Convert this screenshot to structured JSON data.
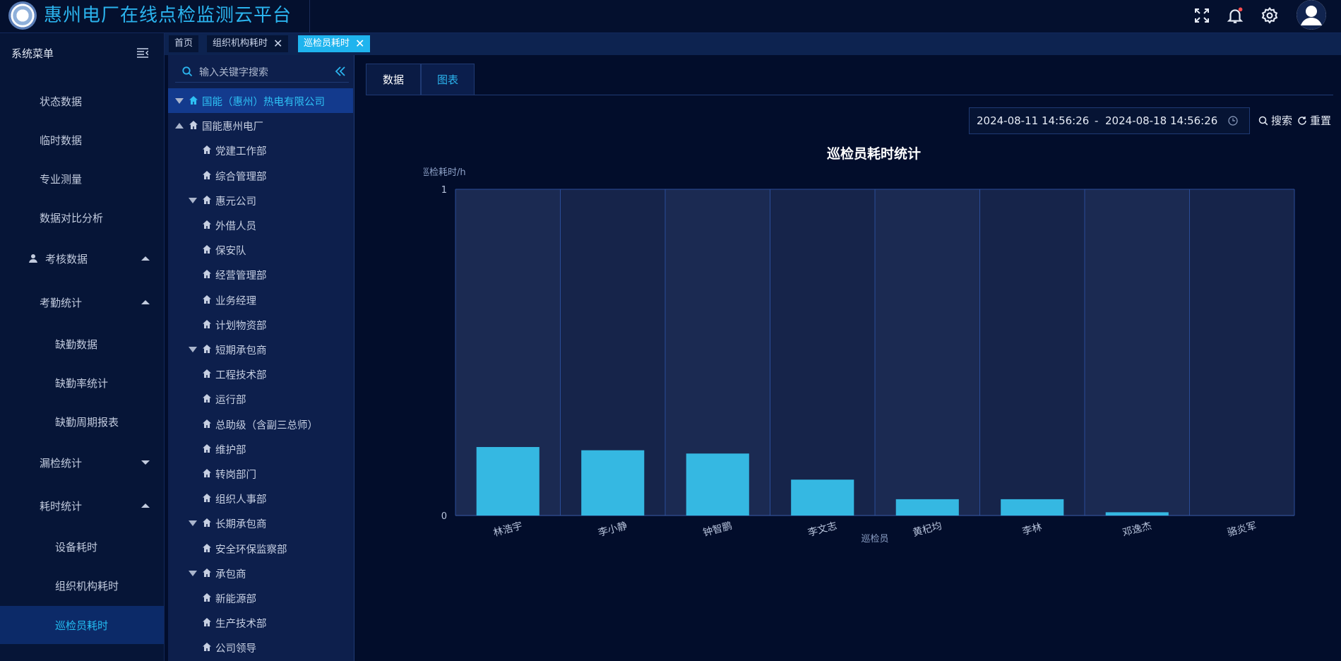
{
  "header": {
    "app_title": "惠州电厂在线点检监测云平台",
    "icons": [
      "fullscreen-icon",
      "bell-icon",
      "gear-icon",
      "avatar-icon"
    ],
    "notification_dot_color": "#ff4d4f"
  },
  "tabs": [
    {
      "label": "首页",
      "closable": false,
      "active": false
    },
    {
      "label": "组织机构耗时",
      "closable": true,
      "active": false
    },
    {
      "label": "巡检员耗时",
      "closable": true,
      "active": true
    }
  ],
  "sidebar": {
    "title": "系统菜单",
    "items": [
      {
        "label": "状态数据",
        "level": 1
      },
      {
        "label": "临时数据",
        "level": 1
      },
      {
        "label": "专业测量",
        "level": 1
      },
      {
        "label": "数据对比分析",
        "level": 1
      },
      {
        "label": "考核数据",
        "level": 0,
        "icon": "user-icon",
        "expanded": true
      },
      {
        "label": "考勤统计",
        "level": 1,
        "expanded": true
      },
      {
        "label": "缺勤数据",
        "level": 2
      },
      {
        "label": "缺勤率统计",
        "level": 2
      },
      {
        "label": "缺勤周期报表",
        "level": 2
      },
      {
        "label": "漏检统计",
        "level": 1,
        "expanded": false
      },
      {
        "label": "耗时统计",
        "level": 1,
        "expanded": true
      },
      {
        "label": "设备耗时",
        "level": 2
      },
      {
        "label": "组织机构耗时",
        "level": 2
      },
      {
        "label": "巡检员耗时",
        "level": 2,
        "active": true
      }
    ]
  },
  "tree": {
    "search_placeholder": "输入关键字搜索",
    "nodes": [
      {
        "label": "国能（惠州）热电有限公司",
        "depth": 0,
        "toggle": "down",
        "selected": true
      },
      {
        "label": "国能惠州电厂",
        "depth": 0,
        "toggle": "up"
      },
      {
        "label": "党建工作部",
        "depth": 1
      },
      {
        "label": "综合管理部",
        "depth": 1
      },
      {
        "label": "惠元公司",
        "depth": 1,
        "toggle": "down"
      },
      {
        "label": "外借人员",
        "depth": 2
      },
      {
        "label": "保安队",
        "depth": 2
      },
      {
        "label": "经营管理部",
        "depth": 2
      },
      {
        "label": "业务经理",
        "depth": 2
      },
      {
        "label": "计划物资部",
        "depth": 2
      },
      {
        "label": "短期承包商",
        "depth": 1,
        "toggle": "down"
      },
      {
        "label": "工程技术部",
        "depth": 2
      },
      {
        "label": "运行部",
        "depth": 2
      },
      {
        "label": "总助级（含副三总师）",
        "depth": 2
      },
      {
        "label": "维护部",
        "depth": 2
      },
      {
        "label": "转岗部门",
        "depth": 2
      },
      {
        "label": "组织人事部",
        "depth": 2
      },
      {
        "label": "长期承包商",
        "depth": 1,
        "toggle": "down"
      },
      {
        "label": "安全环保监察部",
        "depth": 2
      },
      {
        "label": "承包商",
        "depth": 1,
        "toggle": "down"
      },
      {
        "label": "新能源部",
        "depth": 2
      },
      {
        "label": "生产技术部",
        "depth": 2
      },
      {
        "label": "公司领导",
        "depth": 2
      }
    ]
  },
  "view_tabs": {
    "data_label": "数据",
    "chart_label": "图表"
  },
  "filter": {
    "start": "2024-08-11 14:56:26",
    "separator": "-",
    "end": "2024-08-18 14:56:26",
    "search_label": "搜索",
    "reset_label": "重置"
  },
  "chart_data": {
    "type": "bar",
    "title": "巡检员耗时统计",
    "ylabel": "巡检耗时/h",
    "xlabel": "巡检员",
    "categories": [
      "林浩宇",
      "李小静",
      "钟智鹏",
      "李文志",
      "黄杞均",
      "李林",
      "邓逸杰",
      "骆炎军"
    ],
    "values": [
      0.21,
      0.2,
      0.19,
      0.11,
      0.05,
      0.05,
      0.01,
      0
    ],
    "ylim": [
      0,
      1
    ],
    "yticks": [
      "0",
      "1"
    ],
    "bar_color": "#35b8e2",
    "grid": true
  }
}
